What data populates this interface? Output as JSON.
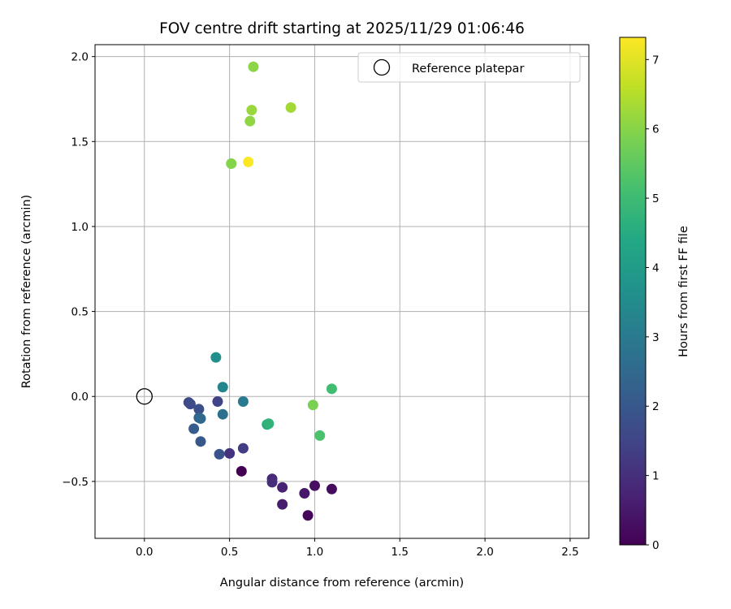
{
  "chart_data": {
    "type": "scatter",
    "title": "FOV centre drift starting at 2025/11/29 01:06:46",
    "xlabel": "Angular distance from reference (arcmin)",
    "ylabel": "Rotation from reference (arcmin)",
    "xlim": [
      -0.29,
      2.61
    ],
    "ylim": [
      -0.835,
      2.07
    ],
    "xticks": [
      0.0,
      0.5,
      1.0,
      1.5,
      2.0,
      2.5
    ],
    "xtick_labels": [
      "0.0",
      "0.5",
      "1.0",
      "1.5",
      "2.0",
      "2.5"
    ],
    "yticks": [
      -0.5,
      0.0,
      0.5,
      1.0,
      1.5,
      2.0
    ],
    "ytick_labels": [
      "−0.5",
      "0.0",
      "0.5",
      "1.0",
      "1.5",
      "2.0"
    ],
    "grid": true,
    "legend": {
      "position": "top-right",
      "entries": [
        "Reference platepar"
      ]
    },
    "reference_point": {
      "x": 0.0,
      "y": 0.0,
      "label": "Reference platepar"
    },
    "colorbar": {
      "label": "Hours from first FF file",
      "colormap": "viridis",
      "range": [
        0,
        7.32
      ],
      "ticks": [
        0,
        1,
        2,
        3,
        4,
        5,
        6,
        7
      ],
      "tick_labels": [
        "0",
        "1",
        "2",
        "3",
        "4",
        "5",
        "6",
        "7"
      ]
    },
    "points": [
      {
        "x": 0.57,
        "y": -0.44,
        "hours": 0.0
      },
      {
        "x": 0.96,
        "y": -0.7,
        "hours": 0.1
      },
      {
        "x": 1.1,
        "y": -0.545,
        "hours": 0.2
      },
      {
        "x": 1.0,
        "y": -0.525,
        "hours": 0.3
      },
      {
        "x": 0.94,
        "y": -0.57,
        "hours": 0.45
      },
      {
        "x": 0.81,
        "y": -0.635,
        "hours": 0.55
      },
      {
        "x": 0.81,
        "y": -0.535,
        "hours": 0.7
      },
      {
        "x": 0.75,
        "y": -0.485,
        "hours": 0.85
      },
      {
        "x": 0.75,
        "y": -0.505,
        "hours": 0.95
      },
      {
        "x": 0.5,
        "y": -0.335,
        "hours": 1.1
      },
      {
        "x": 0.58,
        "y": -0.305,
        "hours": 1.3
      },
      {
        "x": 0.43,
        "y": -0.03,
        "hours": 1.45
      },
      {
        "x": 0.26,
        "y": -0.035,
        "hours": 1.55
      },
      {
        "x": 0.27,
        "y": -0.045,
        "hours": 1.65
      },
      {
        "x": 0.32,
        "y": -0.075,
        "hours": 1.75
      },
      {
        "x": 0.44,
        "y": -0.34,
        "hours": 1.9
      },
      {
        "x": 0.33,
        "y": -0.265,
        "hours": 2.0
      },
      {
        "x": 0.29,
        "y": -0.19,
        "hours": 2.15
      },
      {
        "x": 0.32,
        "y": -0.125,
        "hours": 2.3
      },
      {
        "x": 0.33,
        "y": -0.13,
        "hours": 2.45
      },
      {
        "x": 0.46,
        "y": -0.105,
        "hours": 2.7
      },
      {
        "x": 0.58,
        "y": -0.03,
        "hours": 3.0
      },
      {
        "x": 0.46,
        "y": 0.055,
        "hours": 3.3
      },
      {
        "x": 0.42,
        "y": 0.23,
        "hours": 3.6
      },
      {
        "x": 0.72,
        "y": -0.165,
        "hours": 4.55
      },
      {
        "x": 0.73,
        "y": -0.16,
        "hours": 4.75
      },
      {
        "x": 1.1,
        "y": 0.045,
        "hours": 5.05
      },
      {
        "x": 1.03,
        "y": -0.23,
        "hours": 5.2
      },
      {
        "x": 0.99,
        "y": -0.05,
        "hours": 5.85
      },
      {
        "x": 0.51,
        "y": 1.37,
        "hours": 5.95
      },
      {
        "x": 0.62,
        "y": 1.62,
        "hours": 6.1
      },
      {
        "x": 0.63,
        "y": 1.685,
        "hours": 6.2
      },
      {
        "x": 0.86,
        "y": 1.7,
        "hours": 6.3
      },
      {
        "x": 0.64,
        "y": 1.94,
        "hours": 6.05
      },
      {
        "x": 0.61,
        "y": 1.38,
        "hours": 7.3
      }
    ]
  }
}
